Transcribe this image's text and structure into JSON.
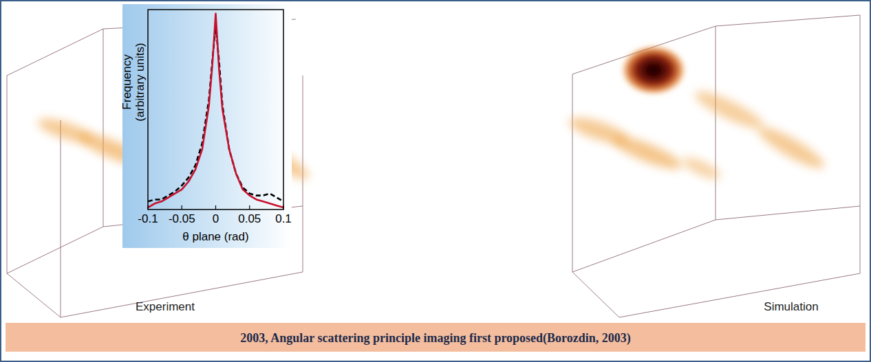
{
  "chart_data": {
    "type": "line",
    "xlabel": "θ plane (rad)",
    "ylabel": "Frequency (arbitrary units)",
    "x": [
      -0.1,
      -0.09,
      -0.08,
      -0.07,
      -0.06,
      -0.05,
      -0.04,
      -0.03,
      -0.02,
      -0.01,
      -0.005,
      0,
      0.005,
      0.01,
      0.02,
      0.03,
      0.04,
      0.05,
      0.06,
      0.07,
      0.08,
      0.09,
      0.1
    ],
    "series": [
      {
        "color": "#c8102e",
        "line_style": "solid",
        "values": [
          0.01,
          0.03,
          0.04,
          0.06,
          0.08,
          0.1,
          0.14,
          0.2,
          0.3,
          0.52,
          0.72,
          0.98,
          0.7,
          0.5,
          0.3,
          0.18,
          0.1,
          0.07,
          0.05,
          0.04,
          0.03,
          0.02,
          0.01
        ]
      },
      {
        "color": "#000000",
        "line_style": "dashed",
        "values": [
          0.04,
          0.05,
          0.05,
          0.07,
          0.09,
          0.12,
          0.16,
          0.22,
          0.33,
          0.55,
          0.74,
          0.92,
          0.74,
          0.52,
          0.3,
          0.18,
          0.11,
          0.08,
          0.07,
          0.07,
          0.08,
          0.06,
          0.04
        ]
      }
    ],
    "xlim": [
      -0.1,
      0.1
    ],
    "xticks": [
      -0.1,
      -0.05,
      0,
      0.05,
      0.1
    ],
    "ylim": [
      0,
      1
    ],
    "tick_labels": "x",
    "grid": false
  },
  "panels": [
    {
      "label": "Experiment"
    },
    {
      "label": "Simulation"
    }
  ],
  "caption": "2003, Angular scattering principle imaging first proposed(Borozdin, 2003)"
}
